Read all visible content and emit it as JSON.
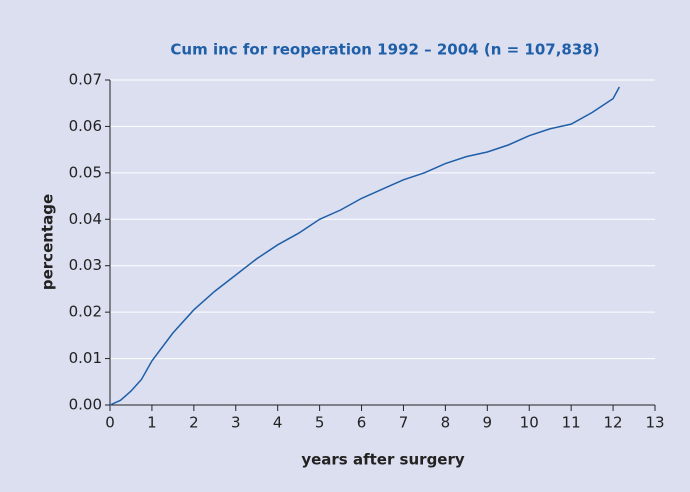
{
  "chart_data": {
    "type": "line",
    "title": "Cum inc for reoperation 1992 – 2004  (n = 107,838)",
    "x_label": "years after surgery",
    "y_label": "percentage",
    "xlim": [
      0,
      13
    ],
    "ylim": [
      0,
      0.07
    ],
    "xticks": [
      0,
      1,
      2,
      3,
      4,
      5,
      6,
      7,
      8,
      9,
      10,
      11,
      12,
      13
    ],
    "yticks": [
      {
        "value": 0,
        "label": "0.00"
      },
      0.01,
      0.02,
      0.03,
      0.04,
      0.05,
      0.06,
      0.07
    ],
    "grid": true,
    "x": [
      0,
      0.25,
      0.5,
      0.75,
      1,
      1.5,
      2,
      2.5,
      3,
      3.5,
      4,
      4.5,
      5,
      5.5,
      6,
      6.5,
      7,
      7.5,
      8,
      8.5,
      9,
      9.5,
      10,
      10.5,
      11,
      11.5,
      12,
      12.15
    ],
    "series": [
      {
        "name": "Cum inc",
        "color": "#1f5fa8",
        "values": [
          0,
          0.001,
          0.003,
          0.0055,
          0.0095,
          0.0155,
          0.0205,
          0.0245,
          0.028,
          0.0315,
          0.0345,
          0.037,
          0.04,
          0.042,
          0.0445,
          0.0465,
          0.0485,
          0.05,
          0.052,
          0.0535,
          0.0545,
          0.056,
          0.058,
          0.0595,
          0.0605,
          0.063,
          0.066,
          0.0685
        ]
      }
    ]
  }
}
